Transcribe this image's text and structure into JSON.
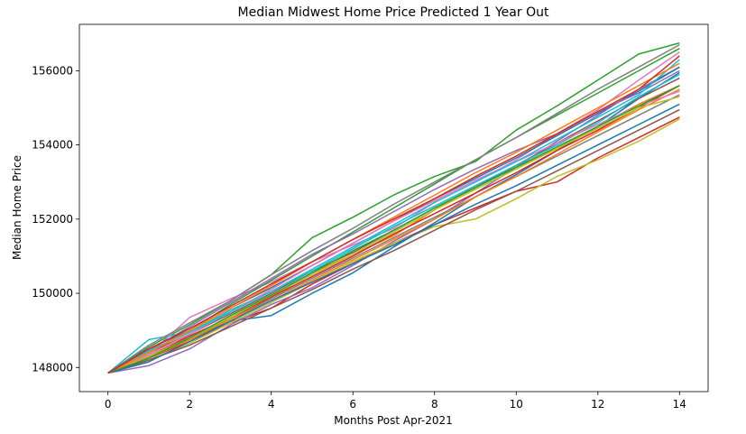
{
  "chart_data": {
    "type": "line",
    "title": "Median Midwest Home Price Predicted 1 Year Out",
    "xlabel": "Months Post Apr-2021",
    "ylabel": "Median Home Price",
    "xlim": [
      -0.7,
      14.7
    ],
    "ylim": [
      147350,
      157250
    ],
    "x_ticks": [
      0,
      2,
      4,
      6,
      8,
      10,
      12,
      14
    ],
    "y_ticks": [
      148000,
      150000,
      152000,
      154000,
      156000
    ],
    "grid": false,
    "legend": "none",
    "colors": [
      "#1f77b4",
      "#ff7f0e",
      "#2ca02c",
      "#d62728",
      "#9467bd",
      "#8c564b",
      "#e377c2",
      "#7f7f7f",
      "#bcbd22",
      "#17becf"
    ],
    "x": [
      0,
      1,
      2,
      3,
      4,
      5,
      6,
      7,
      8,
      9,
      10,
      11,
      12,
      13,
      14
    ],
    "series": [
      {
        "values": [
          147850,
          148300,
          148750,
          149250,
          149400,
          150000,
          150550,
          151250,
          151900,
          152600,
          153200,
          153850,
          154500,
          155250,
          155950
        ]
      },
      {
        "values": [
          147850,
          148450,
          148850,
          149300,
          149900,
          150550,
          151050,
          151550,
          152250,
          152900,
          153400,
          153900,
          154500,
          155100,
          155600
        ]
      },
      {
        "values": [
          147850,
          148550,
          149150,
          149800,
          150500,
          151500,
          152050,
          152650,
          153150,
          153550,
          154400,
          155050,
          155750,
          156450,
          156750
        ]
      },
      {
        "values": [
          147850,
          148250,
          148700,
          149200,
          149600,
          150250,
          150800,
          151350,
          151850,
          152300,
          152750,
          153000,
          153650,
          154200,
          154750
        ]
      },
      {
        "values": [
          147850,
          148050,
          148500,
          149150,
          149700,
          150150,
          150750,
          151400,
          152000,
          152700,
          153400,
          154100,
          154800,
          155500,
          156100
        ]
      },
      {
        "values": [
          147850,
          148400,
          148900,
          149450,
          150000,
          150600,
          151100,
          151700,
          152300,
          152850,
          153450,
          154050,
          154650,
          155250,
          155800
        ]
      },
      {
        "values": [
          147850,
          148350,
          149350,
          149850,
          150300,
          150850,
          151300,
          151750,
          152450,
          153000,
          153600,
          154300,
          154950,
          155750,
          156500
        ]
      },
      {
        "values": [
          147850,
          148300,
          148800,
          149300,
          149850,
          150400,
          150950,
          151500,
          152050,
          152600,
          153150,
          153700,
          154250,
          154800,
          155350
        ]
      },
      {
        "values": [
          147850,
          148200,
          148650,
          149200,
          149750,
          150300,
          150850,
          151350,
          151800,
          152000,
          152550,
          153150,
          153600,
          154100,
          154700
        ]
      },
      {
        "values": [
          147850,
          148750,
          148950,
          149550,
          150050,
          150600,
          151200,
          151800,
          152350,
          152900,
          153450,
          154000,
          154600,
          155300,
          155900
        ]
      },
      {
        "values": [
          147850,
          148500,
          149000,
          149600,
          150150,
          150750,
          151350,
          151950,
          152550,
          153100,
          153650,
          154250,
          154850,
          155450,
          156100
        ]
      },
      {
        "values": [
          147850,
          148250,
          148750,
          149300,
          149800,
          150350,
          150900,
          151450,
          152000,
          152600,
          153150,
          153750,
          154350,
          154950,
          155500
        ]
      },
      {
        "values": [
          147850,
          148400,
          149000,
          149700,
          150350,
          151000,
          151650,
          152300,
          152950,
          153600,
          154200,
          154800,
          155400,
          156000,
          156600
        ]
      },
      {
        "values": [
          147850,
          148300,
          148850,
          149350,
          149900,
          150450,
          151000,
          151600,
          152150,
          152700,
          153250,
          153850,
          154400,
          155000,
          155600
        ]
      },
      {
        "values": [
          147850,
          148450,
          149100,
          149750,
          150400,
          151050,
          151600,
          152200,
          152800,
          153350,
          153850,
          154300,
          154900,
          155400,
          156000
        ]
      },
      {
        "values": [
          147850,
          148200,
          148600,
          149100,
          149600,
          150100,
          150650,
          151150,
          151700,
          152250,
          152750,
          153300,
          153850,
          154400,
          154950
        ]
      },
      {
        "values": [
          147850,
          148350,
          148900,
          149500,
          150100,
          150750,
          151350,
          151950,
          152500,
          153050,
          153550,
          154050,
          154550,
          155050,
          155450
        ]
      },
      {
        "values": [
          147850,
          148600,
          149200,
          149800,
          150500,
          151150,
          151750,
          152400,
          153000,
          153600,
          154200,
          154850,
          155500,
          156100,
          156700
        ]
      },
      {
        "values": [
          147850,
          148300,
          148800,
          149350,
          149950,
          150500,
          151050,
          151650,
          152250,
          152800,
          153350,
          153900,
          154450,
          155000,
          155300
        ]
      },
      {
        "values": [
          147850,
          148450,
          148950,
          149500,
          150050,
          150650,
          151250,
          151850,
          152450,
          153000,
          153550,
          154150,
          154750,
          155350,
          156300
        ]
      },
      {
        "values": [
          147850,
          148150,
          148700,
          149250,
          149800,
          150300,
          150800,
          151300,
          151850,
          152400,
          152900,
          153450,
          154000,
          154550,
          155100
        ]
      },
      {
        "values": [
          147850,
          148400,
          149000,
          149600,
          150200,
          150850,
          151450,
          152050,
          152650,
          153250,
          153800,
          154400,
          155000,
          155600,
          156200
        ]
      },
      {
        "values": [
          147850,
          148250,
          148800,
          149400,
          149950,
          150550,
          151150,
          151700,
          152300,
          152850,
          153400,
          153950,
          154500,
          155050,
          155600
        ]
      },
      {
        "values": [
          147850,
          148500,
          149050,
          149650,
          150250,
          150850,
          151450,
          152000,
          152550,
          153150,
          153700,
          154300,
          154900,
          155500,
          156400
        ]
      }
    ]
  }
}
